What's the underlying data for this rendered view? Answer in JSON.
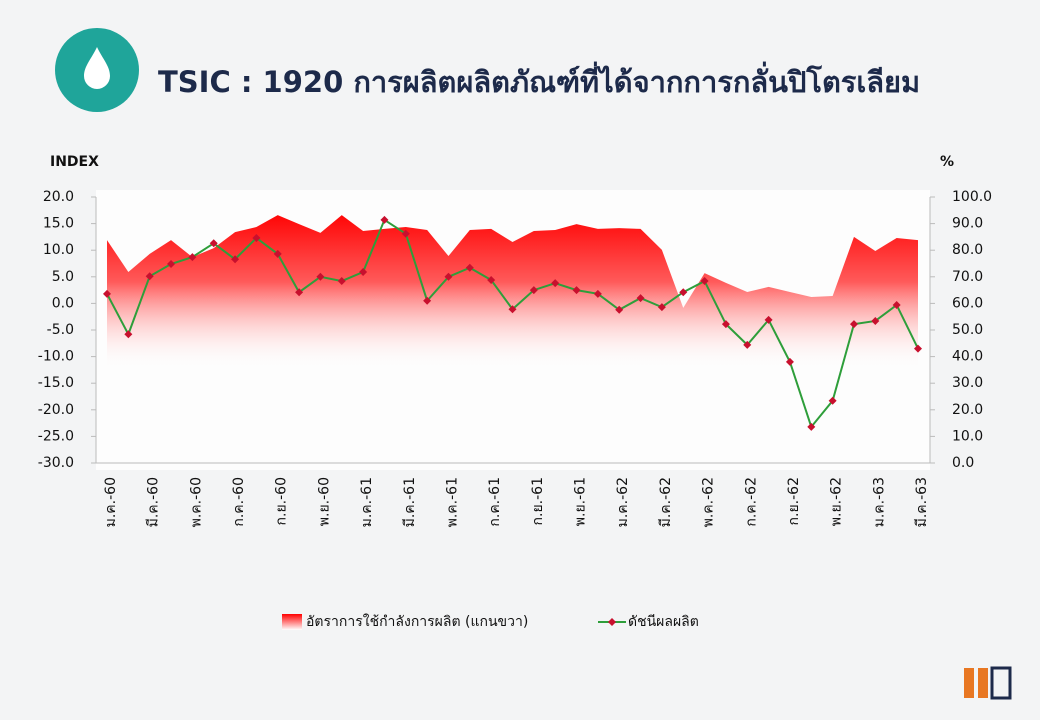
{
  "chart_data": {
    "type": "area-line",
    "title": "TSIC : 1920 การผลิตผลิตภัณฑ์ที่ได้จากการกลั่นปิโตรเลียม",
    "y_label": "INDEX",
    "y2_label": "%",
    "categories": [
      "ม.ค.-60",
      null,
      "มี.ค.-60",
      null,
      "พ.ค.-60",
      null,
      "ก.ค.-60",
      null,
      "ก.ย.-60",
      null,
      "พ.ย.-60",
      null,
      "ม.ค.-61",
      null,
      "มี.ค.-61",
      null,
      "พ.ค.-61",
      null,
      "ก.ค.-61",
      null,
      "ก.ย.-61",
      null,
      "พ.ย.-61",
      null,
      "ม.ค.-62",
      null,
      "มี.ค.-62",
      null,
      "พ.ค.-62",
      null,
      "ก.ค.-62",
      null,
      "ก.ย.-62",
      null,
      "พ.ย.-62",
      null,
      "ม.ค.-63",
      null,
      "มี.ค.-63"
    ],
    "series": [
      {
        "name": "อัตราการใช้กำลังการผลิต (แกนขวา)",
        "type": "area",
        "axis": "y2",
        "color": "#ff0000",
        "values": [
          83.8,
          71.8,
          78.6,
          83.8,
          77.4,
          80.8,
          86.8,
          88.7,
          93.2,
          89.8,
          86.5,
          93.2,
          87.2,
          88.0,
          88.7,
          87.6,
          77.8,
          87.6,
          88.0,
          83.1,
          87.2,
          87.6,
          89.8,
          88.0,
          88.3,
          88.0,
          80.1,
          58.3,
          71.4,
          67.7,
          64.3,
          66.2,
          64.3,
          62.4,
          62.8,
          85.0,
          79.7,
          84.6,
          83.8
        ]
      },
      {
        "name": "ดัชนีผลผลิต",
        "type": "line",
        "color": "#2e9e3a",
        "marker_color": "#c8102e",
        "values": [
          1.8,
          -5.8,
          5.1,
          7.4,
          8.7,
          11.3,
          8.3,
          12.3,
          9.3,
          2.1,
          5.0,
          4.2,
          5.9,
          15.7,
          13.1,
          0.5,
          5.0,
          6.7,
          4.4,
          -1.1,
          2.5,
          3.8,
          2.5,
          1.8,
          -1.2,
          1.0,
          -0.7,
          2.1,
          4.2,
          -3.9,
          -7.8,
          -3.1,
          -11.0,
          -23.2,
          -18.3,
          -3.9,
          -3.3,
          -0.3,
          -8.5
        ]
      }
    ],
    "ylim": [
      -30,
      20
    ],
    "yticks": [
      {
        "value": 20,
        "label": "20.0"
      },
      {
        "value": 15,
        "label": "15.0"
      },
      {
        "value": 10,
        "label": "10.0"
      },
      {
        "value": 5,
        "label": "5.0"
      },
      {
        "value": 0,
        "label": "0.0"
      },
      {
        "value": -5,
        "label": "-5.0"
      },
      {
        "value": -10,
        "label": "-10.0"
      },
      {
        "value": -15,
        "label": "-15.0"
      },
      {
        "value": -20,
        "label": "-20.0"
      },
      {
        "value": -25,
        "label": "-25.0"
      },
      {
        "value": -30,
        "label": "-30.0"
      }
    ],
    "y2lim": [
      0,
      100
    ],
    "y2ticks": [
      {
        "value": 100,
        "label": "100.0"
      },
      {
        "value": 90,
        "label": "90.0"
      },
      {
        "value": 80,
        "label": "80.0"
      },
      {
        "value": 70,
        "label": "70.0"
      },
      {
        "value": 60,
        "label": "60.0"
      },
      {
        "value": 50,
        "label": "50.0"
      },
      {
        "value": 40,
        "label": "40.0"
      },
      {
        "value": 30,
        "label": "30.0"
      },
      {
        "value": 20,
        "label": "20.0"
      },
      {
        "value": 10,
        "label": "10.0"
      },
      {
        "value": 0,
        "label": "0.0"
      }
    ],
    "legend": "bottom"
  }
}
